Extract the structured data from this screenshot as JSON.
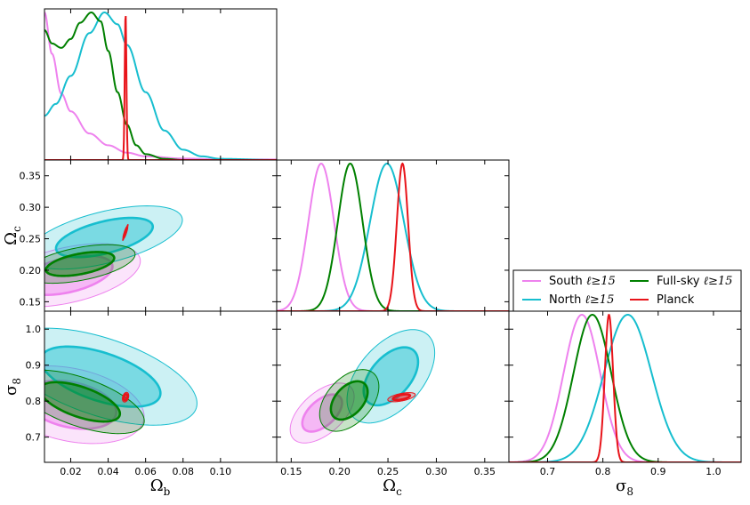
{
  "chart_data": {
    "type": "corner",
    "parameters": [
      {
        "key": "ob",
        "symbol": "Ω",
        "sub": "b",
        "range": [
          0.006,
          0.13
        ],
        "ticks": [
          0.02,
          0.04,
          0.06,
          0.08,
          0.1
        ],
        "tick_labels": [
          "0.02",
          "0.04",
          "0.06",
          "0.08",
          "0.10"
        ]
      },
      {
        "key": "oc",
        "symbol": "Ω",
        "sub": "c",
        "range": [
          0.135,
          0.375
        ],
        "ticks": [
          0.15,
          0.2,
          0.25,
          0.3,
          0.35
        ],
        "tick_labels": [
          "0.15",
          "0.20",
          "0.25",
          "0.30",
          "0.35"
        ]
      },
      {
        "key": "s8",
        "symbol": "σ",
        "sub": "8",
        "range": [
          0.63,
          1.05
        ],
        "ticks": [
          0.7,
          0.8,
          0.9,
          1.0
        ],
        "tick_labels": [
          "0.7",
          "0.8",
          "0.9",
          "1.0"
        ]
      }
    ],
    "series": [
      {
        "name": "South",
        "label_suffix": "ℓ≥15",
        "color": "#ee82ee",
        "marginals": {
          "ob": {
            "type": "decay",
            "points": [
              [
                0.006,
                1.0
              ],
              [
                0.01,
                0.72
              ],
              [
                0.015,
                0.45
              ],
              [
                0.02,
                0.33
              ],
              [
                0.03,
                0.18
              ],
              [
                0.04,
                0.1
              ],
              [
                0.05,
                0.05
              ],
              [
                0.06,
                0.025
              ],
              [
                0.08,
                0.01
              ],
              [
                0.1,
                0.004
              ]
            ]
          },
          "oc": {
            "mean": 0.181,
            "sd": 0.0133
          },
          "s8": {
            "mean": 0.762,
            "sd": 0.033
          }
        },
        "contours": {
          "ob_oc": {
            "cx": 0.018,
            "cy": 0.192,
            "sx": 0.016,
            "sy": 0.0205,
            "rho": 0.45
          },
          "ob_s8": {
            "cx": 0.02,
            "cy": 0.79,
            "sx": 0.016,
            "sy": 0.044,
            "rho": -0.3
          },
          "oc_s8": {
            "cx": 0.182,
            "cy": 0.767,
            "sx": 0.0135,
            "sy": 0.034,
            "rho": 0.55
          }
        }
      },
      {
        "name": "North",
        "label_suffix": "ℓ≥15",
        "color": "#17becf",
        "marginals": {
          "ob": {
            "type": "peak",
            "points": [
              [
                0.006,
                0.3
              ],
              [
                0.012,
                0.38
              ],
              [
                0.02,
                0.57
              ],
              [
                0.03,
                0.86
              ],
              [
                0.038,
                1.0
              ],
              [
                0.045,
                0.92
              ],
              [
                0.05,
                0.78
              ],
              [
                0.06,
                0.46
              ],
              [
                0.07,
                0.2
              ],
              [
                0.08,
                0.07
              ],
              [
                0.09,
                0.025
              ],
              [
                0.1,
                0.008
              ],
              [
                0.13,
                0.0
              ]
            ]
          },
          "oc": {
            "mean": 0.249,
            "sd": 0.0175
          },
          "s8": {
            "mean": 0.845,
            "sd": 0.043
          }
        },
        "contours": {
          "ob_oc": {
            "cx": 0.038,
            "cy": 0.252,
            "sx": 0.017,
            "sy": 0.0205,
            "rho": 0.55
          },
          "ob_s8": {
            "cx": 0.036,
            "cy": 0.868,
            "sx": 0.021,
            "sy": 0.055,
            "rho": -0.55
          },
          "oc_s8": {
            "cx": 0.253,
            "cy": 0.869,
            "sx": 0.0185,
            "sy": 0.053,
            "rho": 0.5
          }
        }
      },
      {
        "name": "Full-sky",
        "label_suffix": "ℓ≥15",
        "color": "#008000",
        "marginals": {
          "ob": {
            "type": "peak",
            "points": [
              [
                0.006,
                0.88
              ],
              [
                0.01,
                0.79
              ],
              [
                0.015,
                0.76
              ],
              [
                0.02,
                0.82
              ],
              [
                0.025,
                0.93
              ],
              [
                0.031,
                1.0
              ],
              [
                0.036,
                0.94
              ],
              [
                0.04,
                0.74
              ],
              [
                0.045,
                0.46
              ],
              [
                0.05,
                0.24
              ],
              [
                0.055,
                0.1
              ],
              [
                0.06,
                0.04
              ],
              [
                0.07,
                0.008
              ],
              [
                0.08,
                0.0
              ]
            ]
          },
          "oc": {
            "mean": 0.211,
            "sd": 0.0128
          },
          "s8": {
            "mean": 0.781,
            "sd": 0.034
          }
        },
        "contours": {
          "ob_oc": {
            "cx": 0.025,
            "cy": 0.21,
            "sx": 0.012,
            "sy": 0.0125,
            "rho": 0.5
          },
          "ob_s8": {
            "cx": 0.025,
            "cy": 0.798,
            "sx": 0.014,
            "sy": 0.036,
            "rho": -0.6
          },
          "oc_s8": {
            "cx": 0.21,
            "cy": 0.802,
            "sx": 0.0125,
            "sy": 0.035,
            "rho": 0.45
          }
        }
      },
      {
        "name": "Planck",
        "label_suffix": "",
        "color": "#e8141a",
        "marginals": {
          "ob": {
            "mean": 0.0493,
            "sd": 0.00045
          },
          "oc": {
            "mean": 0.265,
            "sd": 0.0058
          },
          "s8": {
            "mean": 0.811,
            "sd": 0.0075
          }
        },
        "contours": {
          "ob_oc": {
            "cx": 0.0492,
            "cy": 0.26,
            "sx": 0.0006,
            "sy": 0.0052,
            "rho": 0.95
          },
          "ob_s8": {
            "cx": 0.0493,
            "cy": 0.811,
            "sx": 0.0007,
            "sy": 0.0055,
            "rho": 0.3
          },
          "oc_s8": {
            "cx": 0.264,
            "cy": 0.811,
            "sx": 0.0058,
            "sy": 0.0052,
            "rho": 0.55
          }
        }
      }
    ],
    "legend": {
      "location": "center-right",
      "ncol": 2
    }
  }
}
